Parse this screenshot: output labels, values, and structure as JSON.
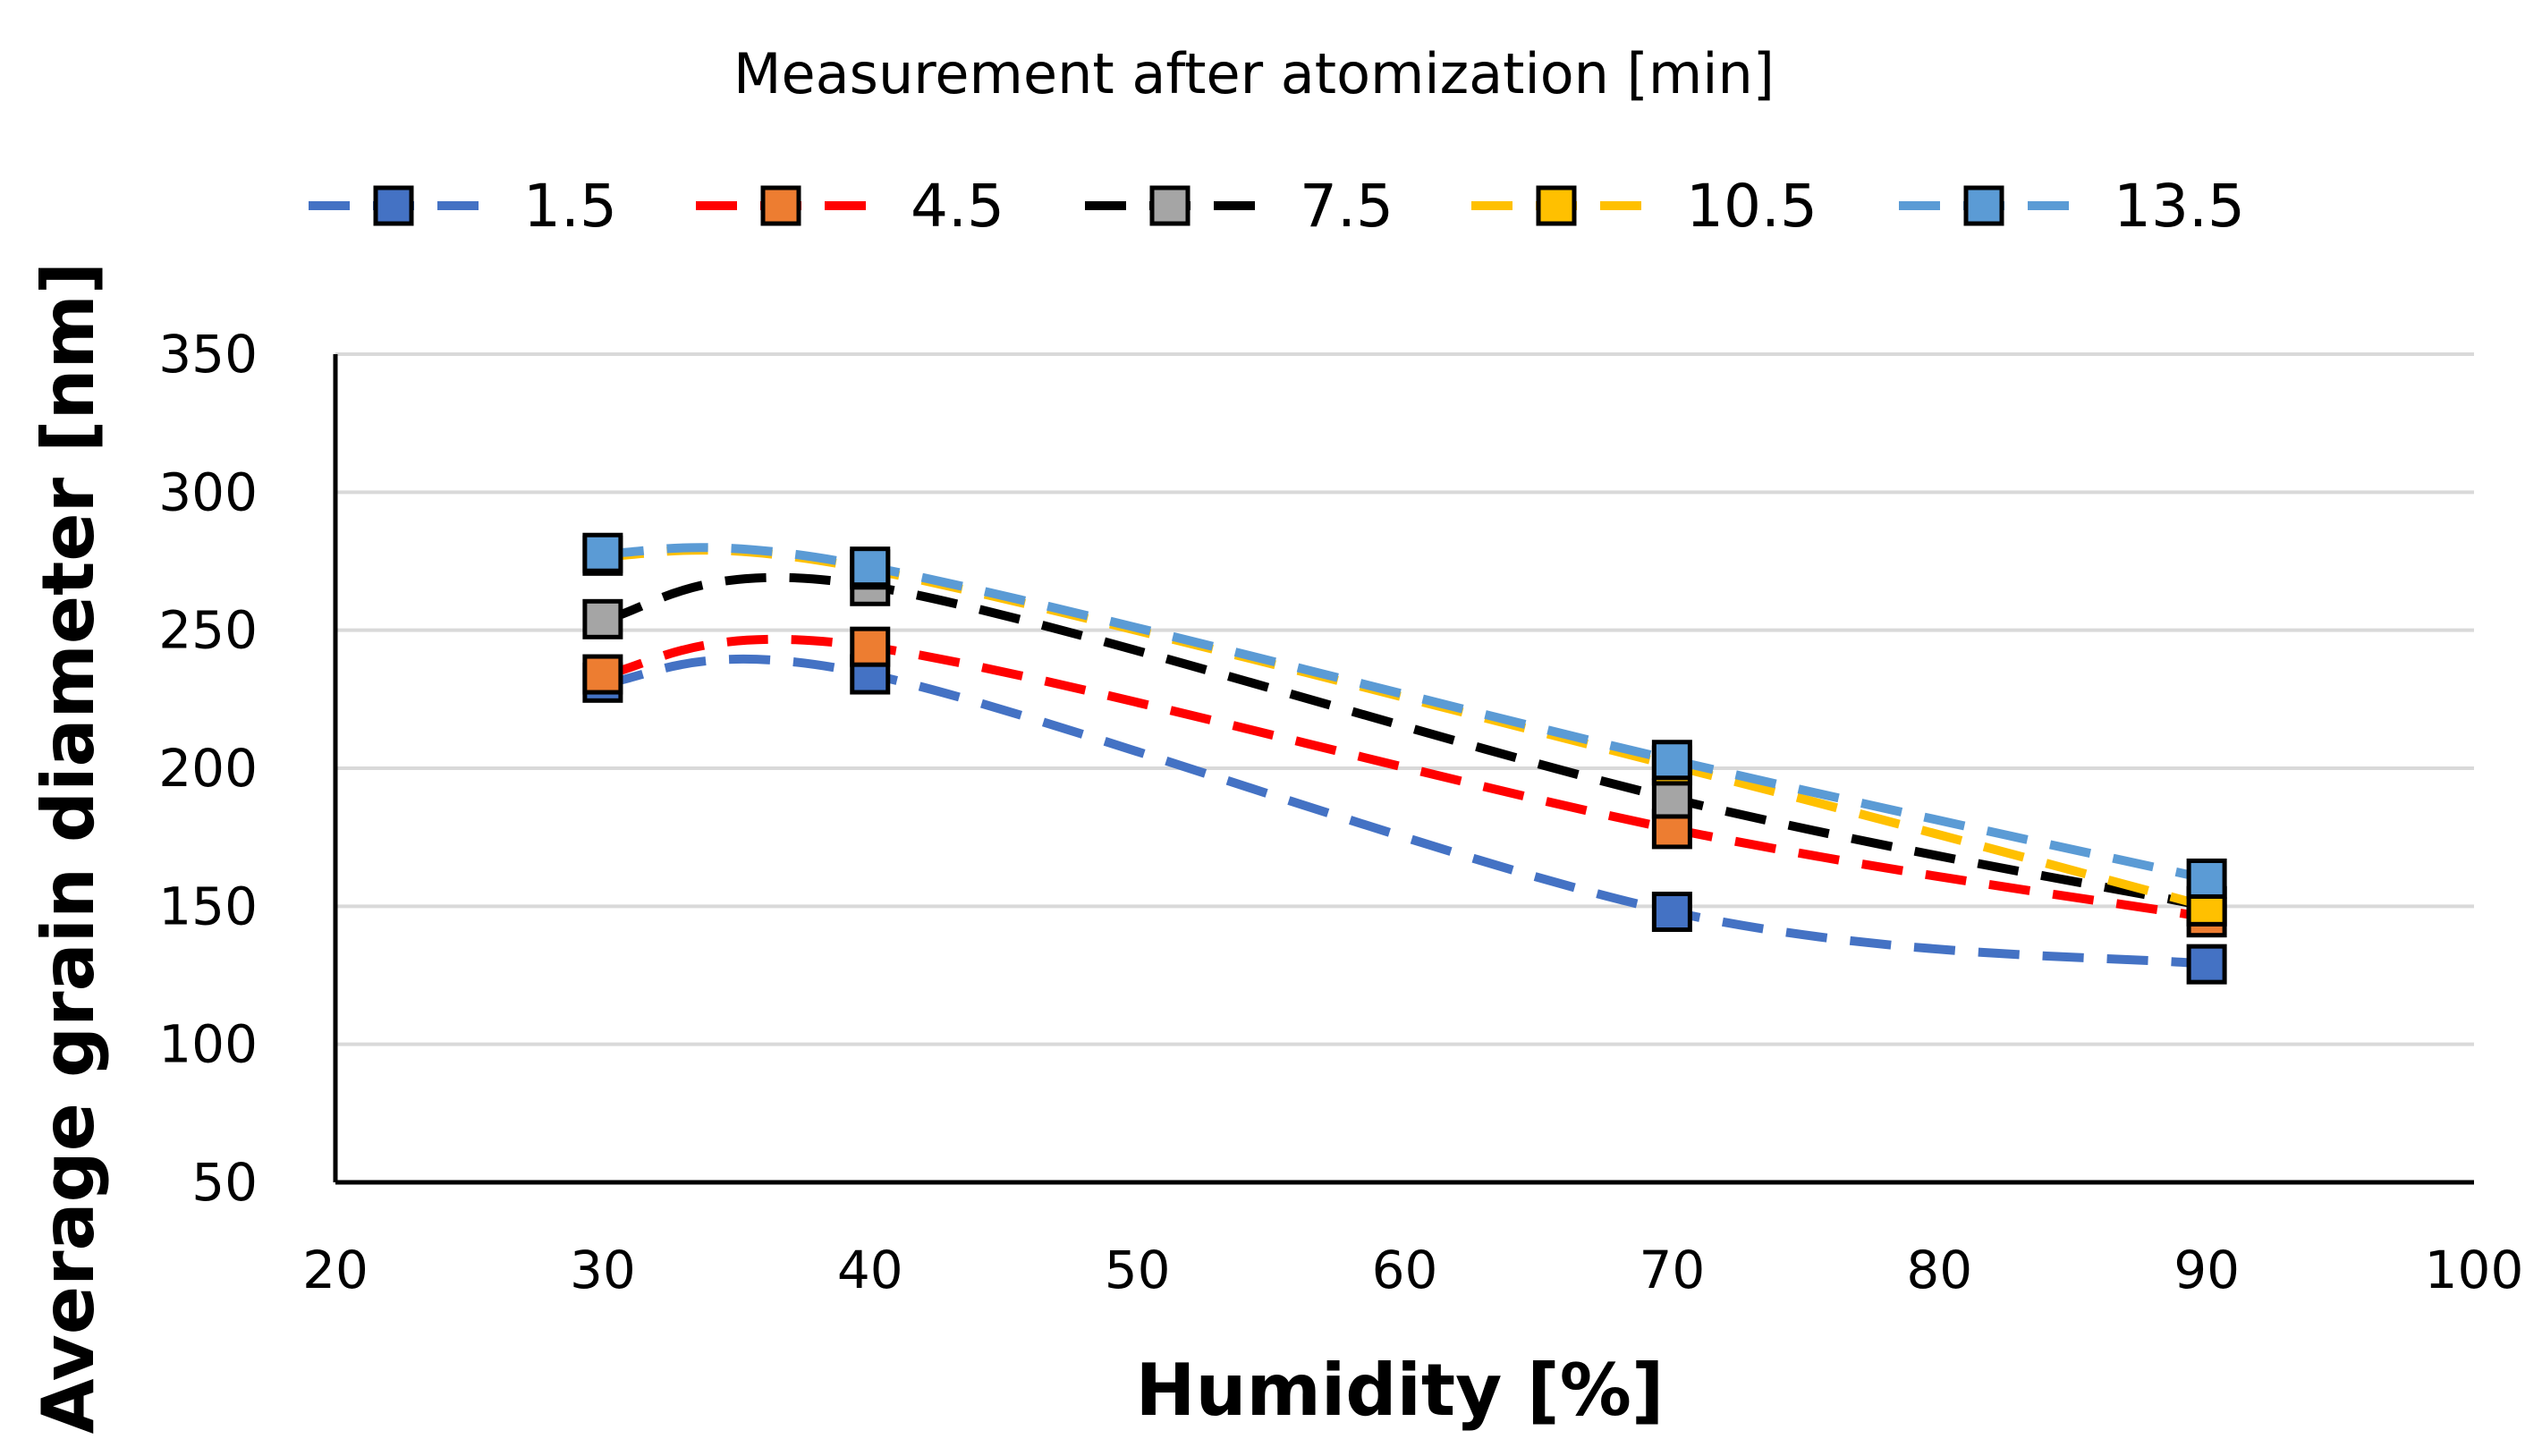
{
  "chart_data": {
    "type": "line",
    "legend_title": "Measurement after atomization [min]",
    "legend_placement": "top",
    "xlabel": "Humidity  [%]",
    "ylabel": "Average grain diameter  [nm]",
    "xlim": [
      20,
      100
    ],
    "ylim": [
      50,
      350
    ],
    "xticks": [
      20,
      30,
      40,
      50,
      60,
      70,
      80,
      90,
      100
    ],
    "yticks": [
      50,
      100,
      150,
      200,
      250,
      300,
      350
    ],
    "grid": "horizontal",
    "line_style": "dashed, smoothed",
    "marker": "square",
    "series": [
      {
        "name": "1.5",
        "color": "#4472c4",
        "x": [
          30,
          40,
          70,
          90
        ],
        "y": [
          231,
          234,
          148,
          129
        ]
      },
      {
        "name": "4.5",
        "color": "#ff0000",
        "marker_color": "#ed7d31",
        "x": [
          30,
          40,
          70,
          90
        ],
        "y": [
          234,
          244,
          178,
          146
        ]
      },
      {
        "name": "7.5",
        "color": "#000000",
        "marker_color": "#a5a5a5",
        "x": [
          30,
          40,
          70,
          90
        ],
        "y": [
          254,
          266,
          189,
          150
        ]
      },
      {
        "name": "10.5",
        "color": "#ffc000",
        "x": [
          30,
          40,
          70,
          90
        ],
        "y": [
          277,
          272,
          201,
          150
        ]
      },
      {
        "name": "13.5",
        "color": "#5b9bd5",
        "x": [
          30,
          40,
          70,
          90
        ],
        "y": [
          278,
          273,
          203,
          160
        ]
      }
    ]
  }
}
